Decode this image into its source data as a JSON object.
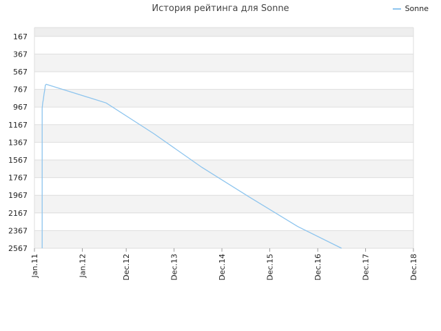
{
  "chart_data": {
    "type": "line",
    "title": "История рейтинга для Sonne",
    "xlabel": "",
    "ylabel": "",
    "y_reversed": true,
    "ylim": [
      2567,
      67
    ],
    "yticks": [
      167,
      367,
      567,
      767,
      967,
      1167,
      1367,
      1567,
      1767,
      1967,
      2167,
      2367,
      2567
    ],
    "xlim": [
      "2011-01-01",
      "2018-12-01"
    ],
    "xticks": [
      {
        "label": "Jan.11",
        "date": "2011-01-01"
      },
      {
        "label": "Jan.12",
        "date": "2012-01-01"
      },
      {
        "label": "Dec.12",
        "date": "2012-12-01"
      },
      {
        "label": "Dec.13",
        "date": "2013-12-01"
      },
      {
        "label": "Dec.14",
        "date": "2014-12-01"
      },
      {
        "label": "Dec.15",
        "date": "2015-12-01"
      },
      {
        "label": "Dec.16",
        "date": "2016-12-01"
      },
      {
        "label": "Dec.17",
        "date": "2017-12-01"
      },
      {
        "label": "Dec.18",
        "date": "2018-12-01"
      }
    ],
    "grid": true,
    "legend_position": "top-right",
    "series": [
      {
        "name": "Sonne",
        "color": "#8cc4ee",
        "points": [
          {
            "x": "2011-03-01",
            "y": 2567
          },
          {
            "x": "2011-03-01",
            "y": 980
          },
          {
            "x": "2011-03-05",
            "y": 920
          },
          {
            "x": "2011-03-10",
            "y": 880
          },
          {
            "x": "2011-03-15",
            "y": 820
          },
          {
            "x": "2011-03-20",
            "y": 780
          },
          {
            "x": "2011-03-25",
            "y": 720
          },
          {
            "x": "2011-04-01",
            "y": 709
          },
          {
            "x": "2012-07-01",
            "y": 921
          },
          {
            "x": "2013-07-01",
            "y": 1270
          },
          {
            "x": "2014-07-01",
            "y": 1650
          },
          {
            "x": "2015-07-01",
            "y": 1990
          },
          {
            "x": "2016-07-01",
            "y": 2320
          },
          {
            "x": "2017-06-01",
            "y": 2567
          }
        ]
      }
    ]
  },
  "legend": {
    "label": "Sonne"
  },
  "colors": {
    "band_light": "#f3f3f3",
    "band_white": "#ffffff",
    "grid": "#dddddd",
    "line": "#8cc4ee"
  }
}
